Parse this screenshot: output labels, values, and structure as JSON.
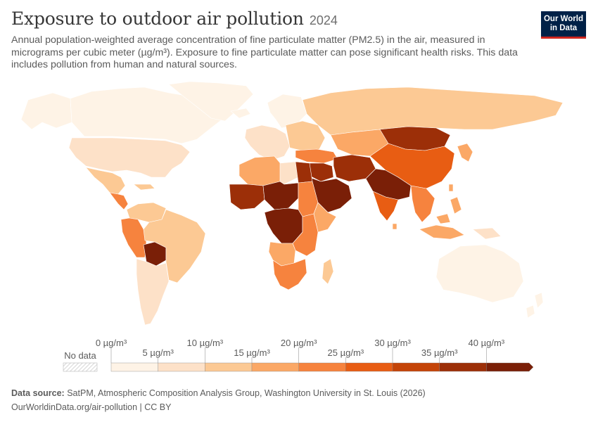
{
  "header": {
    "title": "Exposure to outdoor air pollution",
    "year": "2024",
    "subtitle": "Annual population-weighted average concentration of fine particulate matter (PM2.5) in the air, measured in micrograms per cubic meter (µg/m³). Exposure to fine particulate matter can pose significant health risks. This data includes pollution from human and natural sources."
  },
  "logo": {
    "line1": "Our World",
    "line2": "in Data"
  },
  "legend": {
    "no_data_label": "No data",
    "unit": "µg/m³",
    "thresholds": [
      0,
      5,
      10,
      15,
      20,
      25,
      30,
      35,
      40
    ],
    "tick_labels": [
      "0 µg/m³",
      "5 µg/m³",
      "10 µg/m³",
      "15 µg/m³",
      "20 µg/m³",
      "25 µg/m³",
      "30 µg/m³",
      "35 µg/m³",
      "40 µg/m³"
    ],
    "colors": [
      "#fef3e6",
      "#fde1c8",
      "#fcc994",
      "#fba866",
      "#f6833e",
      "#e85d13",
      "#c44408",
      "#9c2f08",
      "#7a1f07"
    ],
    "no_data_color": "#eeeeee"
  },
  "footer": {
    "source_label": "Data source:",
    "source_text": "SatPM, Atmospheric Composition Analysis Group, Washington University in St. Louis (2026)",
    "url_text": "OurWorldinData.org/air-pollution | CC BY"
  },
  "regions": [
    {
      "name": "Canada",
      "color": "#fef3e6"
    },
    {
      "name": "United States",
      "color": "#fde1c8"
    },
    {
      "name": "Alaska",
      "color": "#fef3e6"
    },
    {
      "name": "Greenland",
      "color": "#fef3e6"
    },
    {
      "name": "Mexico",
      "color": "#fcc994"
    },
    {
      "name": "Central America",
      "color": "#f6833e"
    },
    {
      "name": "Colombia / Venezuela",
      "color": "#fcc994"
    },
    {
      "name": "Peru / Ecuador",
      "color": "#f6833e"
    },
    {
      "name": "Bolivia",
      "color": "#7a1f07"
    },
    {
      "name": "Brazil",
      "color": "#fcc994"
    },
    {
      "name": "Argentina / Chile",
      "color": "#fde1c8"
    },
    {
      "name": "Iceland",
      "color": "#fef3e6"
    },
    {
      "name": "Scandinavia",
      "color": "#fef3e6"
    },
    {
      "name": "Western Europe",
      "color": "#fde1c8"
    },
    {
      "name": "Eastern Europe",
      "color": "#fcc994"
    },
    {
      "name": "Russia",
      "color": "#fcc994"
    },
    {
      "name": "Kazakhstan / Central Asia",
      "color": "#fba866"
    },
    {
      "name": "Mongolia / Western China",
      "color": "#9c2f08"
    },
    {
      "name": "China",
      "color": "#e85d13"
    },
    {
      "name": "Turkey / Caucasus",
      "color": "#f6833e"
    },
    {
      "name": "Middle East",
      "color": "#9c2f08"
    },
    {
      "name": "Arabian Peninsula",
      "color": "#7a1f07"
    },
    {
      "name": "Iran / Afghanistan",
      "color": "#9c2f08"
    },
    {
      "name": "Pakistan / India",
      "color": "#7a1f07"
    },
    {
      "name": "India peninsula",
      "color": "#e85d13"
    },
    {
      "name": "Southeast Asia",
      "color": "#f6833e"
    },
    {
      "name": "Korea / Japan",
      "color": "#fba866"
    },
    {
      "name": "Indonesia / Philippines",
      "color": "#fba866"
    },
    {
      "name": "Australia",
      "color": "#fef3e6"
    },
    {
      "name": "New Zealand",
      "color": "#fef3e6"
    },
    {
      "name": "Morocco / Algeria",
      "color": "#fba866"
    },
    {
      "name": "Libya",
      "color": "#fde1c8"
    },
    {
      "name": "Egypt",
      "color": "#9c2f08"
    },
    {
      "name": "Sahel West",
      "color": "#9c2f08"
    },
    {
      "name": "Chad / Niger",
      "color": "#7a1f07"
    },
    {
      "name": "Sudan / Ethiopia",
      "color": "#f6833e"
    },
    {
      "name": "Horn of Africa",
      "color": "#fba866"
    },
    {
      "name": "Central Africa",
      "color": "#7a1f07"
    },
    {
      "name": "East Africa",
      "color": "#f6833e"
    },
    {
      "name": "Angola / Zambia",
      "color": "#fba866"
    },
    {
      "name": "Southern Africa",
      "color": "#f6833e"
    },
    {
      "name": "Madagascar",
      "color": "#fcc994"
    },
    {
      "name": "Caribbean",
      "color": "#fcc994"
    },
    {
      "name": "Taiwan",
      "color": "#fba866"
    },
    {
      "name": "Sri Lanka",
      "color": "#fba866"
    },
    {
      "name": "Papua New Guinea",
      "color": "#fde1c8"
    }
  ]
}
